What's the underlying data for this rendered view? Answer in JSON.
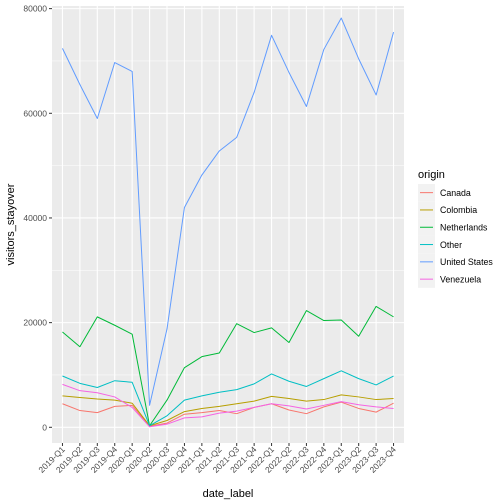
{
  "chart_data": {
    "type": "line",
    "xlabel": "date_label",
    "ylabel": "visitors_stayover",
    "ylim": [
      -3000,
      80500
    ],
    "yticks": [
      0,
      20000,
      40000,
      60000,
      80000
    ],
    "grid": true,
    "legend_position": "right",
    "legend_title": "origin",
    "categories": [
      "2019-Q1",
      "2019-Q2",
      "2019-Q3",
      "2019-Q4",
      "2020-Q1",
      "2020-Q2",
      "2020-Q3",
      "2020-Q4",
      "2021-Q1",
      "2021-Q2",
      "2021-Q3",
      "2021-Q4",
      "2022-Q1",
      "2022-Q2",
      "2022-Q3",
      "2022-Q4",
      "2023-Q1",
      "2023-Q2",
      "2023-Q3",
      "2023-Q4"
    ],
    "series": [
      {
        "name": "Canada",
        "color": "#F8766D",
        "values": [
          4500,
          3200,
          2800,
          4000,
          4200,
          200,
          800,
          2500,
          2800,
          3200,
          2600,
          3800,
          4500,
          3300,
          2600,
          3900,
          4800,
          3600,
          2900,
          4600
        ]
      },
      {
        "name": "Colombia",
        "color": "#B79F00",
        "values": [
          6000,
          5700,
          5400,
          5200,
          4600,
          300,
          1300,
          3000,
          3600,
          4000,
          4500,
          5000,
          5900,
          5500,
          5000,
          5300,
          6200,
          5800,
          5300,
          5500
        ]
      },
      {
        "name": "Netherlands",
        "color": "#00BA38",
        "values": [
          18200,
          15400,
          21100,
          19500,
          17800,
          300,
          5200,
          11400,
          13500,
          14200,
          19800,
          18100,
          19000,
          16200,
          22300,
          20400,
          20500,
          17400,
          23100,
          21100
        ]
      },
      {
        "name": "Other",
        "color": "#00BFC4",
        "values": [
          9800,
          8400,
          7600,
          8900,
          8600,
          300,
          2200,
          5200,
          6000,
          6700,
          7200,
          8300,
          10200,
          8800,
          7800,
          9300,
          10800,
          9300,
          8100,
          9800
        ]
      },
      {
        "name": "United States",
        "color": "#619CFF",
        "values": [
          72400,
          65500,
          59000,
          69700,
          68000,
          4200,
          18800,
          42000,
          48200,
          52800,
          55400,
          64000,
          74900,
          67800,
          61300,
          72200,
          78200,
          70400,
          63500,
          75500
        ]
      },
      {
        "name": "Venezuela",
        "color": "#F564E3",
        "values": [
          8200,
          7000,
          6600,
          5800,
          3800,
          100,
          600,
          1800,
          2000,
          2700,
          3100,
          3800,
          4500,
          4100,
          3500,
          4200,
          4900,
          4300,
          3900,
          3600
        ]
      }
    ]
  }
}
